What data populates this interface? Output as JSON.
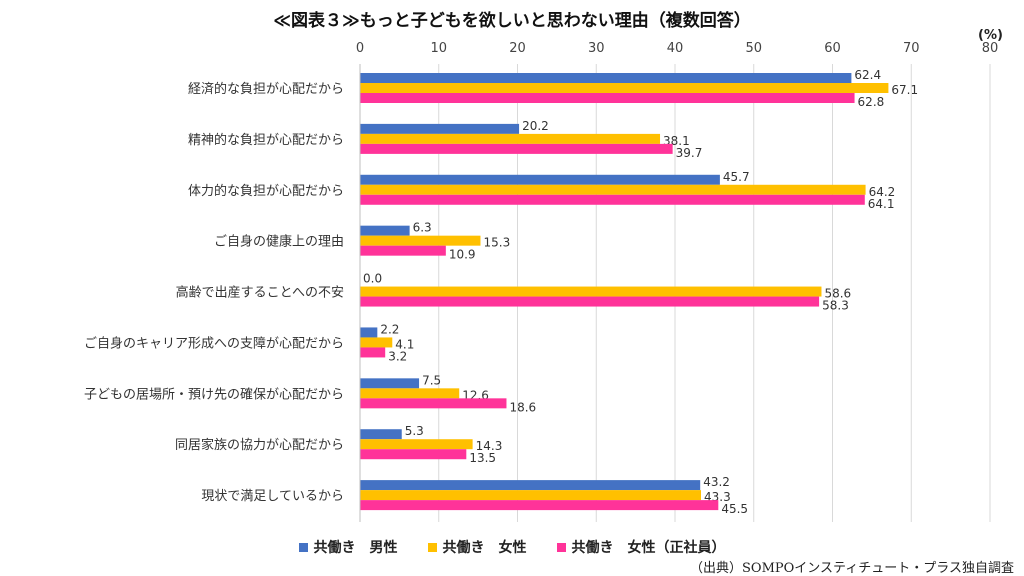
{
  "chart_data": {
    "type": "bar",
    "orientation": "horizontal",
    "title": "≪図表３≫もっと子どもを欲しいと思わない理由（複数回答）",
    "unit": "(%)",
    "xlim": [
      0,
      80
    ],
    "xticks": [
      0,
      10,
      20,
      30,
      40,
      50,
      60,
      70,
      80
    ],
    "grid": true,
    "legend_position": "bottom",
    "categories": [
      "経済的な負担が心配だから",
      "精神的な負担が心配だから",
      "体力的な負担が心配だから",
      "ご自身の健康上の理由",
      "高齢で出産することへの不安",
      "ご自身のキャリア形成への支障が心配だから",
      "子どもの居場所・預け先の確保が心配だから",
      "同居家族の協力が心配だから",
      "現状で満足しているから"
    ],
    "series": [
      {
        "name": "共働き　男性",
        "color": "#4472C4",
        "values": [
          62.4,
          20.2,
          45.7,
          6.3,
          0.0,
          2.2,
          7.5,
          5.3,
          43.2
        ]
      },
      {
        "name": "共働き　女性",
        "color": "#FFC000",
        "values": [
          67.1,
          38.1,
          64.2,
          15.3,
          58.6,
          4.1,
          12.6,
          14.3,
          43.3
        ]
      },
      {
        "name": "共働き　女性（正社員）",
        "color": "#FF3399",
        "values": [
          62.8,
          39.7,
          64.1,
          10.9,
          58.3,
          3.2,
          18.6,
          13.5,
          45.5
        ]
      }
    ]
  },
  "source": "（出典）SOMPOインスティチュート・プラス独自調査"
}
